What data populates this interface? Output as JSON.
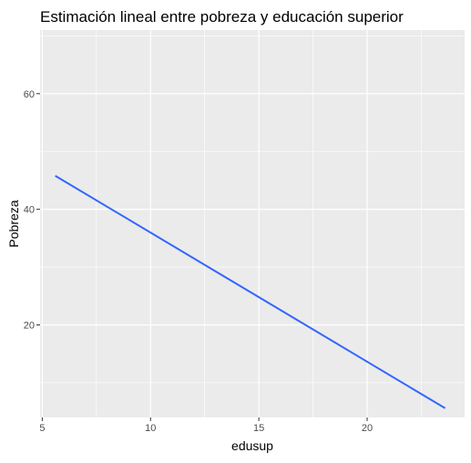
{
  "chart_data": {
    "type": "line",
    "title": "Estimación lineal entre pobreza y educación superior",
    "xlabel": "edusup",
    "ylabel": "Pobreza",
    "xlim": [
      4.9,
      24.5
    ],
    "ylim": [
      4.0,
      71.0
    ],
    "x_ticks": [
      5,
      10,
      15,
      20
    ],
    "x_tick_labels": [
      "5",
      "10",
      "15",
      "20"
    ],
    "y_ticks": [
      20,
      40,
      60
    ],
    "y_tick_labels": [
      "20",
      "40",
      "60"
    ],
    "grid": true,
    "legend": "none",
    "series": [
      {
        "x": [
          5.6,
          23.6
        ],
        "y": [
          45.8,
          5.6
        ],
        "color": "#3366FF"
      }
    ],
    "colors": {
      "panel": "#EBEBEB",
      "grid": "#FFFFFF",
      "line": "#3366FF"
    }
  }
}
